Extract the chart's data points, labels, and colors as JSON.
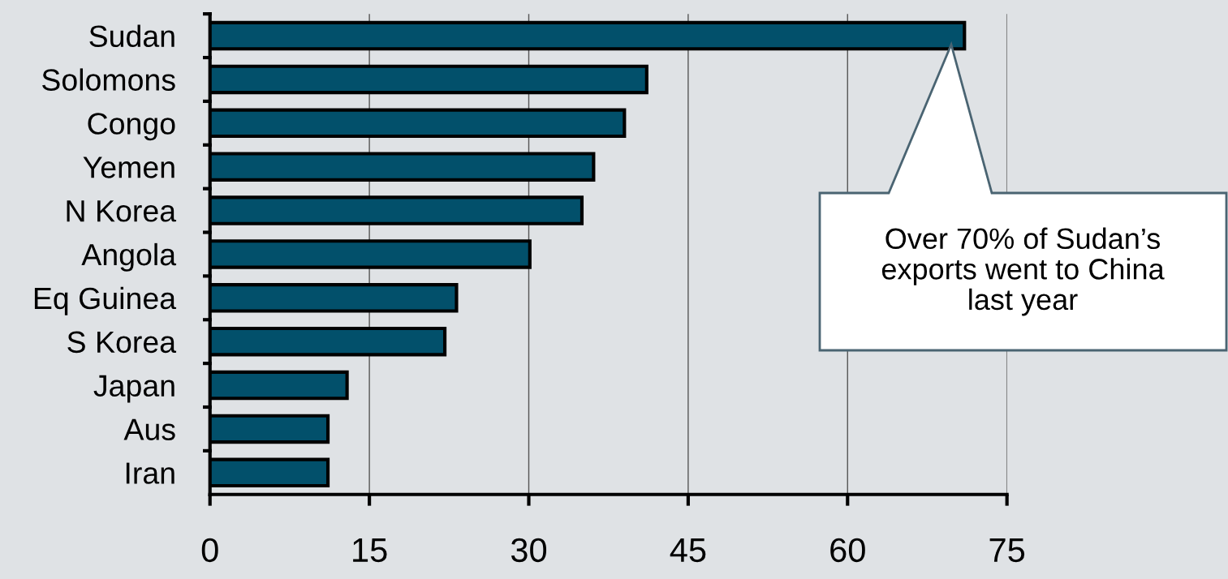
{
  "chart_data": {
    "type": "bar",
    "orientation": "horizontal",
    "categories": [
      "Sudan",
      "Solomons",
      "Congo",
      "Yemen",
      "N Korea",
      "Angola",
      "Eq Guinea",
      "S Korea",
      "Japan",
      "Aus",
      "Iran"
    ],
    "values": [
      71,
      41.1,
      39,
      36.1,
      35,
      30.1,
      23.2,
      22.1,
      12.9,
      11.1,
      11.1
    ],
    "color": "#02506b",
    "xlim": [
      0,
      75
    ],
    "xticks": [
      0,
      15,
      30,
      45,
      60,
      75
    ],
    "grid": "x",
    "annotations": [
      "Over 70% of Sudan’s\nexports went to China\nlast year"
    ]
  }
}
